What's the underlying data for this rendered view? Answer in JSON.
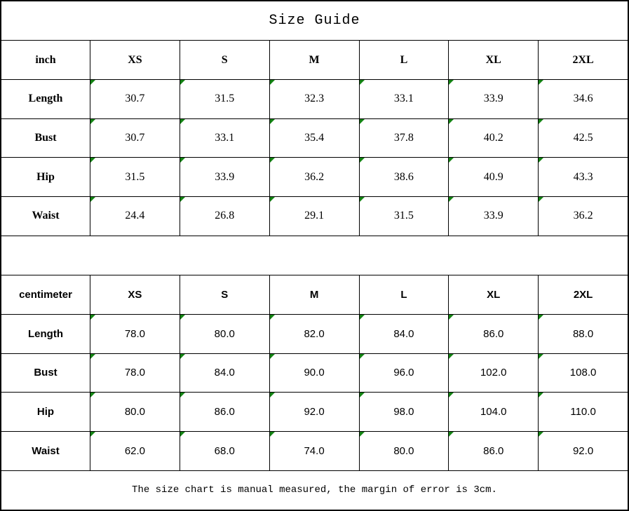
{
  "title": "Size Guide",
  "footer": "The size chart is manual measured, the margin of error is 3cm.",
  "colors": {
    "border": "#000000",
    "background": "#ffffff",
    "marker_green": "#148414"
  },
  "tables": [
    {
      "unit": "inch",
      "sizes": [
        "XS",
        "S",
        "M",
        "L",
        "XL",
        "2XL"
      ],
      "rows": [
        {
          "label": "Length",
          "values": [
            "30.7",
            "31.5",
            "32.3",
            "33.1",
            "33.9",
            "34.6"
          ]
        },
        {
          "label": "Bust",
          "values": [
            "30.7",
            "33.1",
            "35.4",
            "37.8",
            "40.2",
            "42.5"
          ]
        },
        {
          "label": "Hip",
          "values": [
            "31.5",
            "33.9",
            "36.2",
            "38.6",
            "40.9",
            "43.3"
          ]
        },
        {
          "label": "Waist",
          "values": [
            "24.4",
            "26.8",
            "29.1",
            "31.5",
            "33.9",
            "36.2"
          ]
        }
      ]
    },
    {
      "unit": "centimeter",
      "sizes": [
        "XS",
        "S",
        "M",
        "L",
        "XL",
        "2XL"
      ],
      "rows": [
        {
          "label": "Length",
          "values": [
            "78.0",
            "80.0",
            "82.0",
            "84.0",
            "86.0",
            "88.0"
          ]
        },
        {
          "label": "Bust",
          "values": [
            "78.0",
            "84.0",
            "90.0",
            "96.0",
            "102.0",
            "108.0"
          ]
        },
        {
          "label": "Hip",
          "values": [
            "80.0",
            "86.0",
            "92.0",
            "98.0",
            "104.0",
            "110.0"
          ]
        },
        {
          "label": "Waist",
          "values": [
            "62.0",
            "68.0",
            "74.0",
            "80.0",
            "86.0",
            "92.0"
          ]
        }
      ]
    }
  ]
}
